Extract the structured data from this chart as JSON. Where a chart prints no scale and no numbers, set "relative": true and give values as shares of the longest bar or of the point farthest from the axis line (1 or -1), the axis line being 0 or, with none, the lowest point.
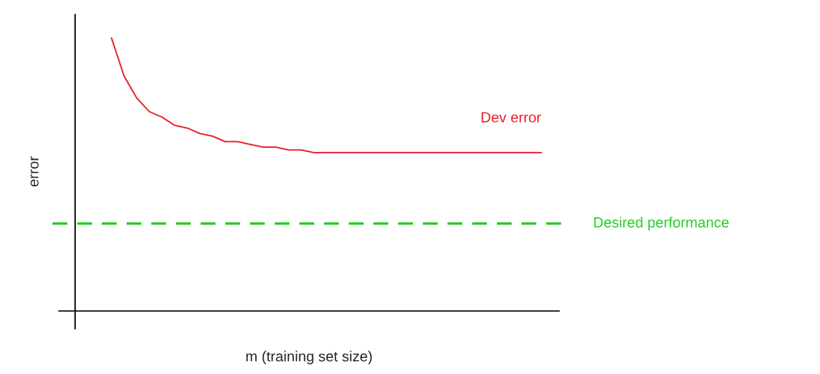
{
  "chart_data": {
    "type": "line",
    "relative": true,
    "xlabel": "m (training set size)",
    "ylabel": "error",
    "categories": [
      null,
      null,
      null,
      null,
      null,
      null,
      null,
      null,
      null,
      null,
      null,
      null,
      null,
      null,
      null,
      null,
      null,
      null,
      null,
      null,
      null,
      null,
      null,
      null,
      null,
      null,
      null,
      null,
      null,
      null,
      null,
      null,
      null,
      null,
      null
    ],
    "series": [
      {
        "name": "Dev error",
        "color": "#e8202a",
        "values": [
          1.0,
          0.86,
          0.78,
          0.73,
          0.71,
          0.68,
          0.67,
          0.65,
          0.64,
          0.62,
          0.62,
          0.61,
          0.6,
          0.6,
          0.59,
          0.59,
          0.58,
          0.58,
          0.58,
          0.58,
          0.58,
          0.58,
          0.58,
          0.58,
          0.58,
          0.58,
          0.58,
          0.58,
          0.58,
          0.58,
          0.58,
          0.58,
          0.58,
          0.58,
          0.58
        ]
      }
    ],
    "ref_lines": [
      {
        "axis": "y",
        "value": 0.32,
        "label": "Desired performance",
        "color": "#22cc22",
        "line_style": "dashed"
      }
    ],
    "legend": false
  }
}
